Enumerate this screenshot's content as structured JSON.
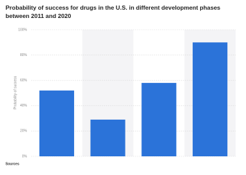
{
  "chart_data": {
    "type": "bar",
    "title": "Probability of success for drugs in the U.S. in different development phases between 2011 and 2020",
    "y_label": "Probability of success",
    "categories": [
      null,
      null,
      null,
      null
    ],
    "values": [
      52,
      29,
      58,
      90
    ],
    "color": "#2b73d9",
    "ylim": [
      0,
      100
    ],
    "yticks": [
      {
        "value": 0,
        "label": "0%"
      },
      {
        "value": 20,
        "label": "20%"
      },
      {
        "value": 40,
        "label": "40%"
      },
      {
        "value": 60,
        "label": "60%"
      },
      {
        "value": 80,
        "label": "80%"
      },
      {
        "value": 100,
        "label": "100%"
      }
    ],
    "grid": true,
    "source_heading": "Sources"
  }
}
